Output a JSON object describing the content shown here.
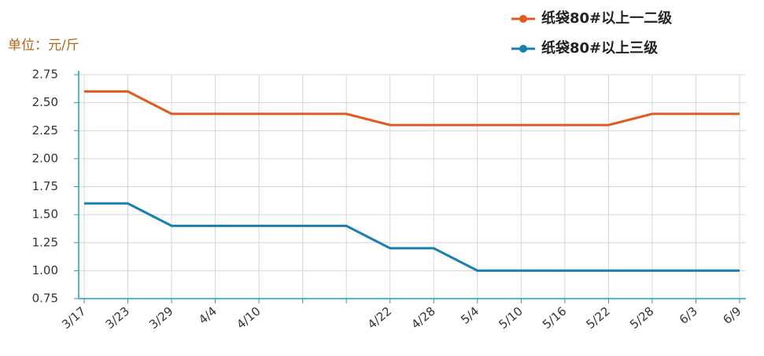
{
  "chart_data": {
    "type": "line",
    "unit_label": "单位：元/斤",
    "categories": [
      "3/17",
      "3/23",
      "3/29",
      "4/4",
      "4/10",
      null,
      null,
      "4/22",
      "4/28",
      "5/4",
      "5/10",
      "5/16",
      "5/22",
      "5/28",
      "6/3",
      "6/9"
    ],
    "series": [
      {
        "name": "纸袋80#以上一二级",
        "color": "#e05a1e",
        "values": [
          2.6,
          2.6,
          2.4,
          2.4,
          2.4,
          2.4,
          2.4,
          2.3,
          2.3,
          2.3,
          2.3,
          2.3,
          2.3,
          2.4,
          2.4,
          2.4
        ]
      },
      {
        "name": "纸袋80#以上三级",
        "color": "#1a7fb0",
        "values": [
          1.6,
          1.6,
          1.4,
          1.4,
          1.4,
          1.4,
          1.4,
          1.2,
          1.2,
          1.0,
          1.0,
          1.0,
          1.0,
          1.0,
          1.0,
          1.0
        ]
      }
    ],
    "ylim": [
      0.75,
      2.75
    ],
    "yticks": [
      0.75,
      {
        "value": 1.0,
        "label": "1.00"
      },
      1.25,
      {
        "value": 1.5,
        "label": "1.50"
      },
      1.75,
      {
        "value": 2.0,
        "label": "2.00"
      },
      2.25,
      {
        "value": 2.5,
        "label": "2.50"
      },
      2.75
    ],
    "grid": true
  }
}
